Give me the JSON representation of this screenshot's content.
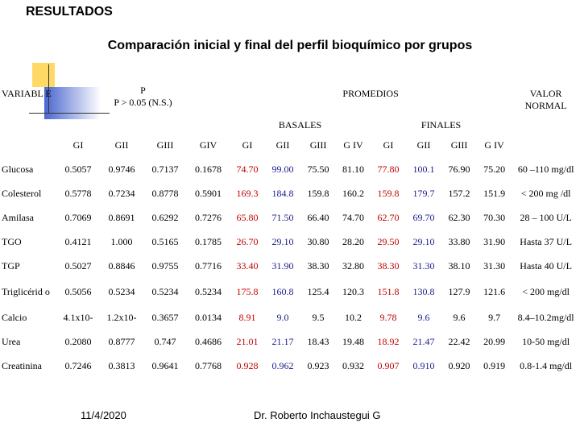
{
  "header": {
    "title": "RESULTADOS",
    "subtitle": "Comparación inicial y final  del perfil bioquímico por grupos"
  },
  "table": {
    "variable_header": "VARIABL E",
    "p_header": "P",
    "p_note": "P > 0.05   (N.S.)",
    "promedios_header": "PROMEDIOS",
    "normal_header": "VALOR NORMAL",
    "basales_header": "BASALES",
    "finales_header": "FINALES",
    "columns": [
      "GI",
      "GII",
      "GIII",
      "GIV",
      "GI",
      "GII",
      "GIII",
      "G IV",
      "GI",
      "GII",
      "GIII",
      "G IV"
    ],
    "rows": [
      [
        "Glucosa",
        "0.5057",
        "0.9746",
        "0.7137",
        "0.1678",
        "74.70",
        "99.00",
        "75.50",
        "81.10",
        "77.80",
        "100.1",
        "76.90",
        "75.20",
        "60 –110 mg/dl"
      ],
      [
        "Colesterol",
        "0.5778",
        "0.7234",
        "0.8778",
        "0.5901",
        "169.3",
        "184.8",
        "159.8",
        "160.2",
        "159.8",
        "179.7",
        "157.2",
        "151.9",
        "< 200 mg /dl"
      ],
      [
        "Amilasa",
        "0.7069",
        "0.8691",
        "0.6292",
        "0.7276",
        "65.80",
        "71.50",
        "66.40",
        "74.70",
        "62.70",
        "69.70",
        "62.30",
        "70.30",
        "28 – 100 U/L"
      ],
      [
        "TGO",
        "0.4121",
        "1.000",
        "0.5165",
        "0.1785",
        "26.70",
        "29.10",
        "30.80",
        "28.20",
        "29.50",
        "29.10",
        "33.80",
        "31.90",
        "Hasta 37 U/L"
      ],
      [
        "TGP",
        "0.5027",
        "0.8846",
        "0.9755",
        "0.7716",
        "33.40",
        "31.90",
        "38.30",
        "32.80",
        "38.30",
        "31.30",
        "38.10",
        "31.30",
        "Hasta 40 U/L"
      ],
      [
        "Triglicérid o",
        "0.5056",
        "0.5234",
        "0.5234",
        "0.5234",
        "175.8",
        "160.8",
        "125.4",
        "120.3",
        "151.8",
        "130.8",
        "127.9",
        "121.6",
        "< 200 mg/dl"
      ],
      [
        "Calcio",
        "4.1x10-",
        "1.2x10-",
        "0.3657",
        "0.0134",
        "8.91",
        "9.0",
        "9.5",
        "10.2",
        "9.78",
        "9.6",
        "9.6",
        "9.7",
        "8.4–10.2mg/dl"
      ],
      [
        "Urea",
        "0.2080",
        "0.8777",
        "0.747",
        "0.4686",
        "21.01",
        "21.17",
        "18.43",
        "19.48",
        "18.92",
        "21.47",
        "22.42",
        "20.99",
        "10-50 mg/dl"
      ],
      [
        "Creatinina",
        "0.7246",
        "0.3813",
        "0.9641",
        "0.7768",
        "0.928",
        "0.962",
        "0.923",
        "0.932",
        "0.907",
        "0.910",
        "0.920",
        "0.919",
        "0.8-1.4 mg/dl"
      ]
    ]
  },
  "footer": {
    "date": "11/4/2020",
    "author": "Dr. Roberto Inchaustegui G"
  }
}
